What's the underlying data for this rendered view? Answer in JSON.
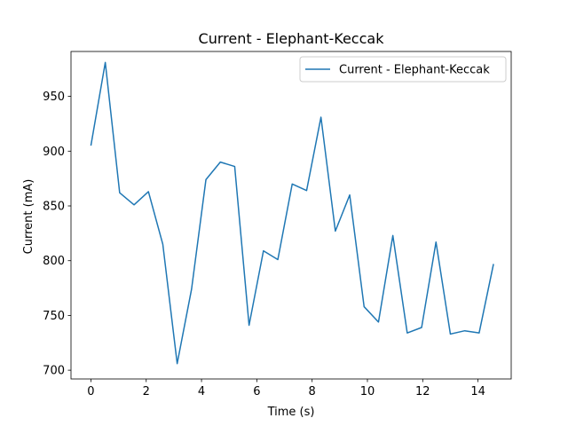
{
  "chart_data": {
    "type": "line",
    "title": "Current - Elephant-Keccak",
    "xlabel": "Time (s)",
    "ylabel": "Current (mA)",
    "xlim": [
      -0.72,
      15.2
    ],
    "ylim": [
      692,
      991
    ],
    "xticks": [
      0,
      2,
      4,
      6,
      8,
      10,
      12,
      14
    ],
    "yticks": [
      700,
      750,
      800,
      850,
      900,
      950
    ],
    "grid": false,
    "legend_position": "upper right",
    "series": [
      {
        "name": "Current - Elephant-Keccak",
        "color": "#1f77b4",
        "x": [
          0.0,
          0.52,
          1.04,
          1.56,
          2.08,
          2.6,
          3.12,
          3.64,
          4.16,
          4.68,
          5.2,
          5.72,
          6.24,
          6.76,
          7.28,
          7.8,
          8.32,
          8.84,
          9.36,
          9.88,
          10.4,
          10.92,
          11.44,
          11.96,
          12.48,
          13.0,
          13.52,
          14.04,
          14.56
        ],
        "y": [
          905,
          981,
          862,
          851,
          863,
          815,
          706,
          774,
          874,
          890,
          886,
          741,
          809,
          801,
          870,
          864,
          931,
          827,
          860,
          758,
          744,
          823,
          734,
          739,
          817,
          733,
          736,
          734,
          797
        ]
      }
    ]
  }
}
